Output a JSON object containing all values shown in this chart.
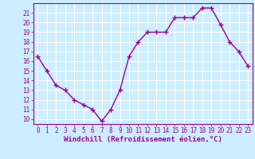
{
  "x": [
    0,
    1,
    2,
    3,
    4,
    5,
    6,
    7,
    8,
    9,
    10,
    11,
    12,
    13,
    14,
    15,
    16,
    17,
    18,
    19,
    20,
    21,
    22,
    23
  ],
  "y": [
    16.5,
    15.0,
    13.5,
    13.0,
    12.0,
    11.5,
    11.0,
    9.8,
    11.0,
    13.0,
    16.5,
    18.0,
    19.0,
    19.0,
    19.0,
    20.5,
    20.5,
    20.5,
    21.5,
    21.5,
    19.8,
    18.0,
    17.0,
    15.5
  ],
  "line_color": "#990099",
  "marker": "+",
  "marker_size": 4,
  "marker_linewidth": 1.0,
  "linewidth": 1.0,
  "xlabel": "Windchill (Refroidissement éolien,°C)",
  "xlabel_fontsize": 6.5,
  "xtick_labels": [
    "0",
    "1",
    "2",
    "3",
    "4",
    "5",
    "6",
    "7",
    "8",
    "9",
    "10",
    "11",
    "12",
    "13",
    "14",
    "15",
    "16",
    "17",
    "18",
    "19",
    "20",
    "21",
    "22",
    "23"
  ],
  "ytick_labels": [
    "10",
    "11",
    "12",
    "13",
    "14",
    "15",
    "16",
    "17",
    "18",
    "19",
    "20",
    "21"
  ],
  "ylim": [
    9.5,
    22.0
  ],
  "xlim": [
    -0.5,
    23.5
  ],
  "background_color": "#cceeff",
  "grid_color": "#ffffff",
  "tick_color": "#990099",
  "tick_fontsize": 5.5,
  "spine_color": "#990099"
}
